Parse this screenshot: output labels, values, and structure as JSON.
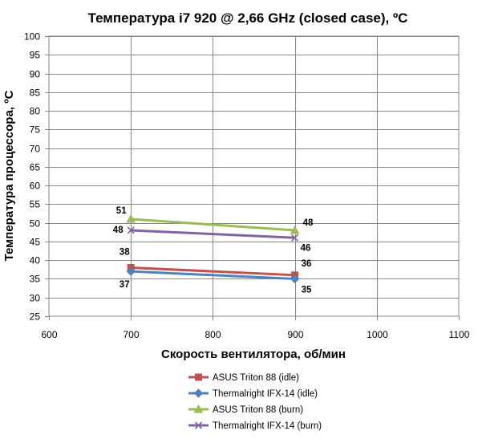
{
  "chart_data": {
    "type": "line",
    "title": "Температура i7 920 @ 2,66 GHz (closed case), ºC",
    "xlabel": "Скорость вентилятора, об/мин",
    "ylabel": "Температура процессора, ºC",
    "xlim": [
      600,
      1100
    ],
    "ylim": [
      25,
      100
    ],
    "x_ticks": [
      "600",
      "700",
      "800",
      "900",
      "1000",
      "1100"
    ],
    "y_ticks": [
      "25",
      "30",
      "35",
      "40",
      "45",
      "50",
      "55",
      "60",
      "65",
      "70",
      "75",
      "80",
      "85",
      "90",
      "95",
      "100"
    ],
    "grid": true,
    "legend_position": "bottom",
    "series": [
      {
        "name": "ASUS Triton 88 (idle)",
        "color": "#c0504d",
        "marker": "square",
        "x": [
          700,
          900
        ],
        "y": [
          38,
          36
        ],
        "labels": [
          "38",
          "36"
        ]
      },
      {
        "name": "Thermalright IFX-14 (idle)",
        "color": "#4f81bd",
        "marker": "diamond",
        "x": [
          700,
          900
        ],
        "y": [
          37,
          35
        ],
        "labels": [
          "37",
          "35"
        ]
      },
      {
        "name": "ASUS Triton 88 (burn)",
        "color": "#9bbb59",
        "marker": "triangle",
        "x": [
          700,
          900
        ],
        "y": [
          51,
          48
        ],
        "labels": [
          "51",
          "48"
        ]
      },
      {
        "name": "Thermalright IFX-14 (burn)",
        "color": "#8064a2",
        "marker": "x",
        "x": [
          700,
          900
        ],
        "y": [
          48,
          46
        ],
        "labels": [
          "48",
          "46"
        ]
      }
    ]
  }
}
